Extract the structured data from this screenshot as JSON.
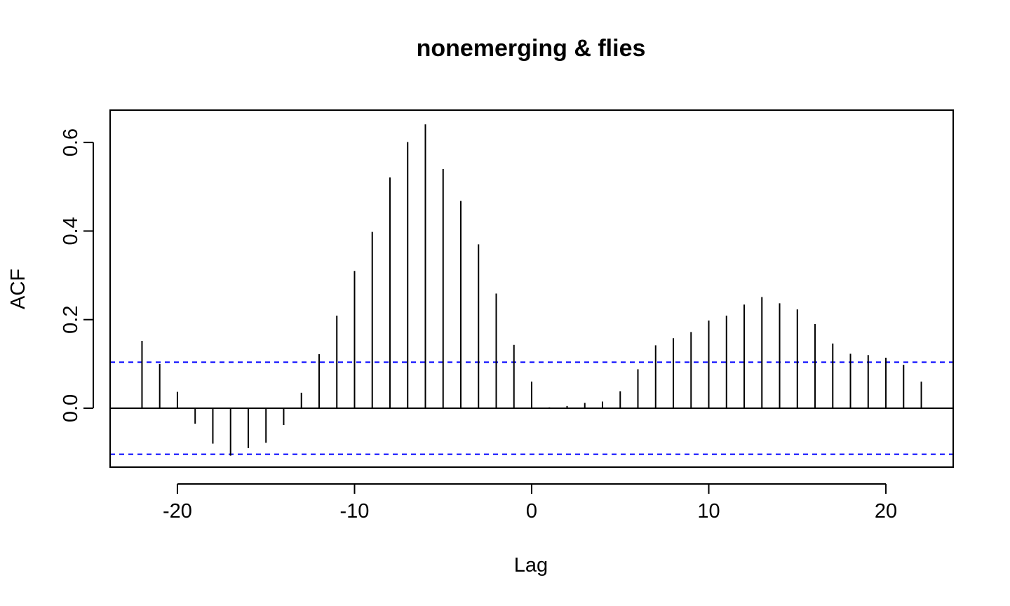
{
  "chart_data": {
    "type": "bar",
    "title": "nonemerging & flies",
    "xlabel": "Lag",
    "ylabel": "ACF",
    "xlim": [
      -23.8,
      23.8
    ],
    "ylim": [
      -0.133,
      0.673
    ],
    "x_ticks": [
      -20,
      -10,
      0,
      10,
      20
    ],
    "x_tick_labels": [
      "-20",
      "-10",
      "0",
      "10",
      "20"
    ],
    "y_ticks": [
      0.0,
      0.2,
      0.4,
      0.6
    ],
    "y_tick_labels": [
      "0.0",
      "0.2",
      "0.4",
      "0.6"
    ],
    "confidence_bound": 0.104,
    "colors": {
      "bars": "#000000",
      "bounds": "#0000ff",
      "zero_line": "#000000"
    },
    "lags": [
      -22,
      -21,
      -20,
      -19,
      -18,
      -17,
      -16,
      -15,
      -14,
      -13,
      -12,
      -11,
      -10,
      -9,
      -8,
      -7,
      -6,
      -5,
      -4,
      -3,
      -2,
      -1,
      0,
      1,
      2,
      3,
      4,
      5,
      6,
      7,
      8,
      9,
      10,
      11,
      12,
      13,
      14,
      15,
      16,
      17,
      18,
      19,
      20,
      21,
      22
    ],
    "values": [
      0.152,
      0.1,
      0.037,
      -0.035,
      -0.08,
      -0.107,
      -0.09,
      -0.078,
      -0.038,
      0.035,
      0.122,
      0.209,
      0.31,
      0.398,
      0.521,
      0.601,
      0.641,
      0.54,
      0.468,
      0.37,
      0.259,
      0.143,
      0.06,
      0.002,
      0.005,
      0.012,
      0.015,
      0.038,
      0.088,
      0.142,
      0.158,
      0.172,
      0.198,
      0.209,
      0.234,
      0.251,
      0.237,
      0.223,
      0.19,
      0.146,
      0.123,
      0.12,
      0.114,
      0.098,
      0.06
    ]
  }
}
